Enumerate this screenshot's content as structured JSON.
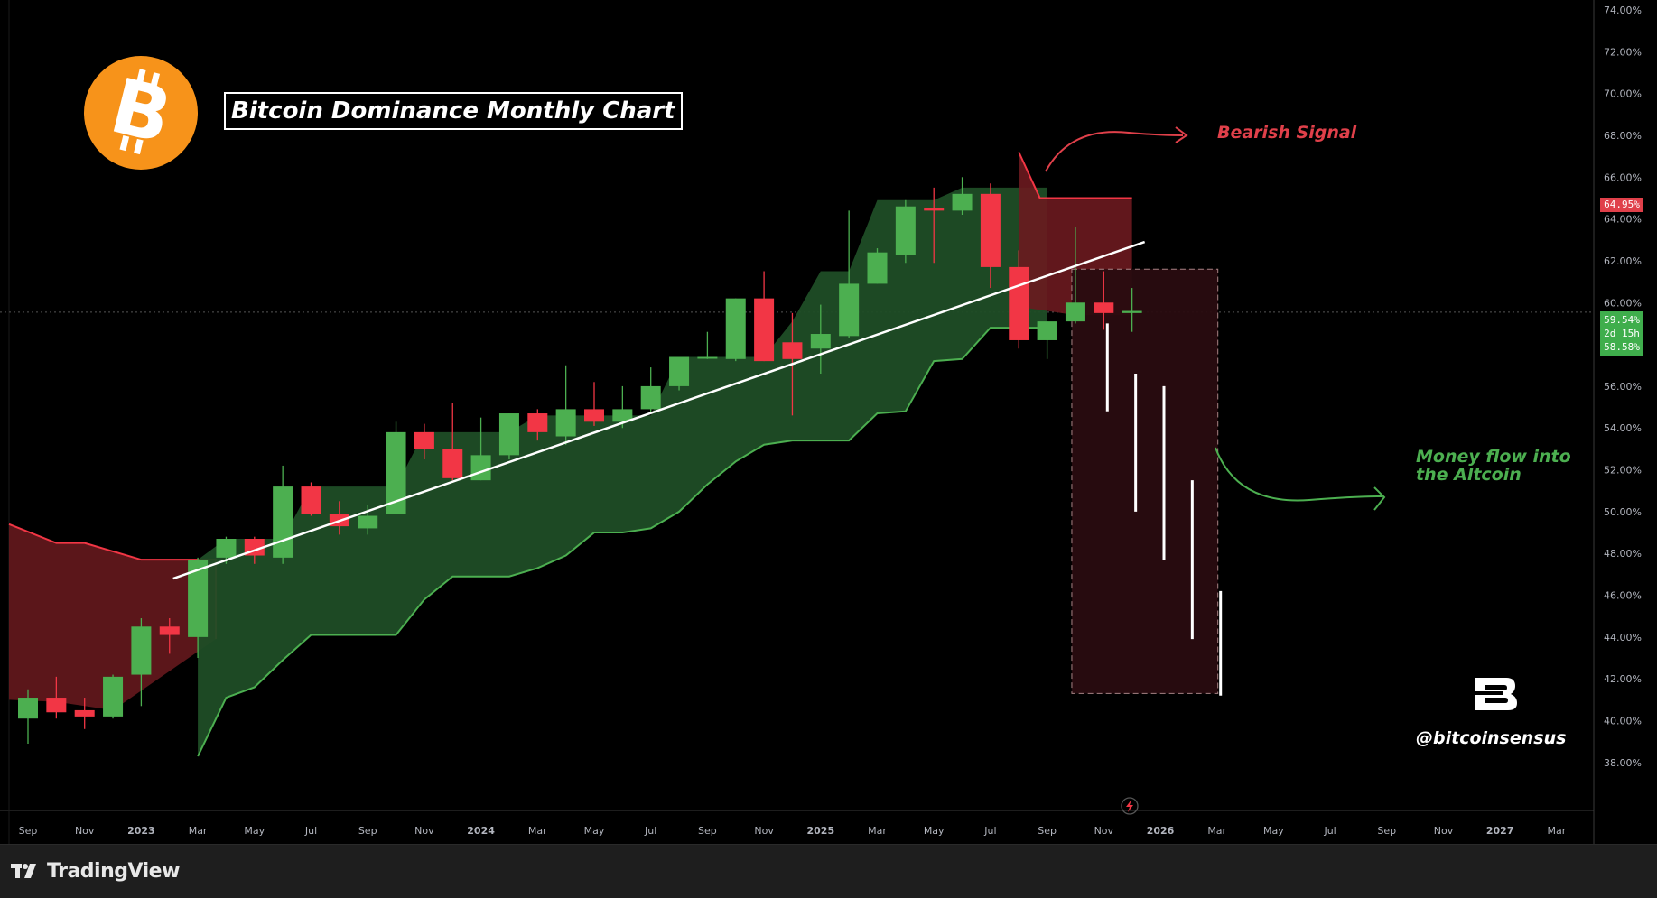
{
  "title": "Bitcoin Dominance Monthly Chart",
  "annotations": {
    "bearish_signal": "Bearish Signal",
    "money_flow_line1": "Money flow into",
    "money_flow_line2": "the Altcoin"
  },
  "brand": {
    "handle": "@bitcoinsensus"
  },
  "footer": {
    "platform": "TradingView"
  },
  "price_tags": {
    "high_label": "64.95%",
    "current_label": "59.54%",
    "countdown": "2d 15h",
    "low_label": "58.58%"
  },
  "colors": {
    "up": "#4caf50",
    "down": "#f23645",
    "cloud_bull": "#1f4d26",
    "cloud_bear": "#6b1a1f",
    "projection_box": "#2a0c10",
    "trendline": "#ffffff",
    "background": "#000000",
    "bitcoin": "#f7931a"
  },
  "chart_data": {
    "type": "candlestick",
    "title": "Bitcoin Dominance Monthly Chart",
    "timeframe": "monthly",
    "y_axis": {
      "unit": "%",
      "range": [
        37,
        74
      ],
      "ticks": [
        "38.00%",
        "40.00%",
        "42.00%",
        "44.00%",
        "46.00%",
        "48.00%",
        "50.00%",
        "52.00%",
        "54.00%",
        "56.00%",
        "58.00%",
        "60.00%",
        "62.00%",
        "64.00%",
        "66.00%",
        "68.00%",
        "70.00%",
        "72.00%",
        "74.00%"
      ]
    },
    "x_axis": {
      "ticks": [
        "Sep",
        "Nov",
        "2023",
        "Mar",
        "May",
        "Jul",
        "Sep",
        "Nov",
        "2024",
        "Mar",
        "May",
        "Jul",
        "Sep",
        "Nov",
        "2025",
        "Mar",
        "May",
        "Jul",
        "Sep",
        "Nov",
        "2026",
        "Mar",
        "May",
        "Jul",
        "Sep",
        "Nov",
        "2027",
        "Mar"
      ]
    },
    "candles": [
      {
        "o": 40.1,
        "h": 41.5,
        "l": 38.9,
        "c": 41.1
      },
      {
        "o": 41.1,
        "h": 42.1,
        "l": 40.1,
        "c": 40.4
      },
      {
        "o": 40.5,
        "h": 41.1,
        "l": 39.6,
        "c": 40.2
      },
      {
        "o": 40.2,
        "h": 42.2,
        "l": 40.1,
        "c": 42.1
      },
      {
        "o": 42.2,
        "h": 44.9,
        "l": 40.7,
        "c": 44.5
      },
      {
        "o": 44.5,
        "h": 44.9,
        "l": 43.2,
        "c": 44.1
      },
      {
        "o": 44.0,
        "h": 47.8,
        "l": 43.0,
        "c": 47.7
      },
      {
        "o": 47.8,
        "h": 48.8,
        "l": 47.5,
        "c": 48.7
      },
      {
        "o": 48.7,
        "h": 48.8,
        "l": 47.5,
        "c": 47.9
      },
      {
        "o": 47.8,
        "h": 52.2,
        "l": 47.5,
        "c": 51.2
      },
      {
        "o": 51.2,
        "h": 51.4,
        "l": 49.8,
        "c": 49.9
      },
      {
        "o": 49.9,
        "h": 50.5,
        "l": 48.9,
        "c": 49.3
      },
      {
        "o": 49.2,
        "h": 50.3,
        "l": 48.9,
        "c": 49.8
      },
      {
        "o": 49.9,
        "h": 54.3,
        "l": 49.9,
        "c": 53.8
      },
      {
        "o": 53.8,
        "h": 54.2,
        "l": 52.5,
        "c": 53.0
      },
      {
        "o": 53.0,
        "h": 55.2,
        "l": 51.5,
        "c": 51.6
      },
      {
        "o": 51.5,
        "h": 54.5,
        "l": 51.5,
        "c": 52.7
      },
      {
        "o": 52.7,
        "h": 54.7,
        "l": 52.5,
        "c": 54.7
      },
      {
        "o": 54.7,
        "h": 54.9,
        "l": 53.4,
        "c": 53.8
      },
      {
        "o": 53.6,
        "h": 57.0,
        "l": 53.2,
        "c": 54.9
      },
      {
        "o": 54.9,
        "h": 56.2,
        "l": 54.1,
        "c": 54.3
      },
      {
        "o": 54.3,
        "h": 56.0,
        "l": 54.0,
        "c": 54.9
      },
      {
        "o": 54.9,
        "h": 56.9,
        "l": 54.7,
        "c": 56.0
      },
      {
        "o": 56.0,
        "h": 57.3,
        "l": 55.8,
        "c": 57.4
      },
      {
        "o": 57.4,
        "h": 58.6,
        "l": 57.3,
        "c": 57.4
      },
      {
        "o": 57.3,
        "h": 60.2,
        "l": 57.2,
        "c": 60.2
      },
      {
        "o": 60.2,
        "h": 61.5,
        "l": 57.2,
        "c": 57.2
      },
      {
        "o": 58.1,
        "h": 59.5,
        "l": 54.6,
        "c": 57.3
      },
      {
        "o": 57.8,
        "h": 59.9,
        "l": 56.6,
        "c": 58.5
      },
      {
        "o": 58.4,
        "h": 64.4,
        "l": 58.3,
        "c": 60.9
      },
      {
        "o": 60.9,
        "h": 62.6,
        "l": 60.9,
        "c": 62.4
      },
      {
        "o": 62.3,
        "h": 64.9,
        "l": 61.9,
        "c": 64.6
      },
      {
        "o": 64.5,
        "h": 65.5,
        "l": 61.9,
        "c": 64.4
      },
      {
        "o": 64.4,
        "h": 66.0,
        "l": 64.2,
        "c": 65.2
      },
      {
        "o": 65.2,
        "h": 65.7,
        "l": 60.7,
        "c": 61.7
      },
      {
        "o": 61.7,
        "h": 62.5,
        "l": 57.8,
        "c": 58.2
      },
      {
        "o": 58.2,
        "h": 59.1,
        "l": 57.3,
        "c": 59.1
      },
      {
        "o": 59.1,
        "h": 63.6,
        "l": 59.0,
        "c": 60.0
      },
      {
        "o": 60.0,
        "h": 61.5,
        "l": 58.7,
        "c": 59.5
      },
      {
        "o": 59.5,
        "h": 60.7,
        "l": 58.6,
        "c": 59.6
      }
    ],
    "cloud_bear_left_top": [
      49.4,
      48.5,
      48.5,
      48.1,
      47.7,
      47.7,
      47.7
    ],
    "cloud_bull_top": [
      47.7,
      48.7,
      48.7,
      48.7,
      51.2,
      51.2,
      51.2,
      51.2,
      53.8,
      53.8,
      53.8,
      53.8,
      54.6,
      54.6,
      54.6,
      54.6,
      54.6,
      57.4,
      57.4,
      57.4,
      57.4,
      59.1,
      61.5,
      61.5,
      64.9,
      64.9,
      64.9,
      65.5,
      65.5,
      65.5,
      65.5
    ],
    "cloud_bull_bottom": [
      38.3,
      41.1,
      41.6,
      42.9,
      44.1,
      44.1,
      44.1,
      44.1,
      45.8,
      46.9,
      46.9,
      46.9,
      47.3,
      47.9,
      49.0,
      49.0,
      49.2,
      50.0,
      51.3,
      52.4,
      53.2,
      53.4,
      53.4,
      53.4,
      54.7,
      54.8,
      57.2,
      57.3,
      58.8,
      58.8,
      58.8
    ],
    "cloud_bear_right_top": [
      67.2,
      65.0,
      65.0,
      65.0,
      65.0
    ],
    "cloud_bear_right_bottom": [
      59.8,
      59.6,
      59.4,
      59.4,
      59.4
    ],
    "trendline": [
      [
        46.8,
        5
      ],
      [
        62.9,
        39
      ]
    ],
    "projection_box": {
      "top": 61.6,
      "bottom": 41.3,
      "from_index": 37,
      "to_index": 42
    },
    "projection_bars": [
      [
        59.0,
        54.8
      ],
      [
        56.6,
        50.0
      ],
      [
        56.0,
        47.7
      ],
      [
        51.5,
        43.9
      ],
      [
        46.2,
        41.2
      ]
    ],
    "current_price": 59.54
  }
}
